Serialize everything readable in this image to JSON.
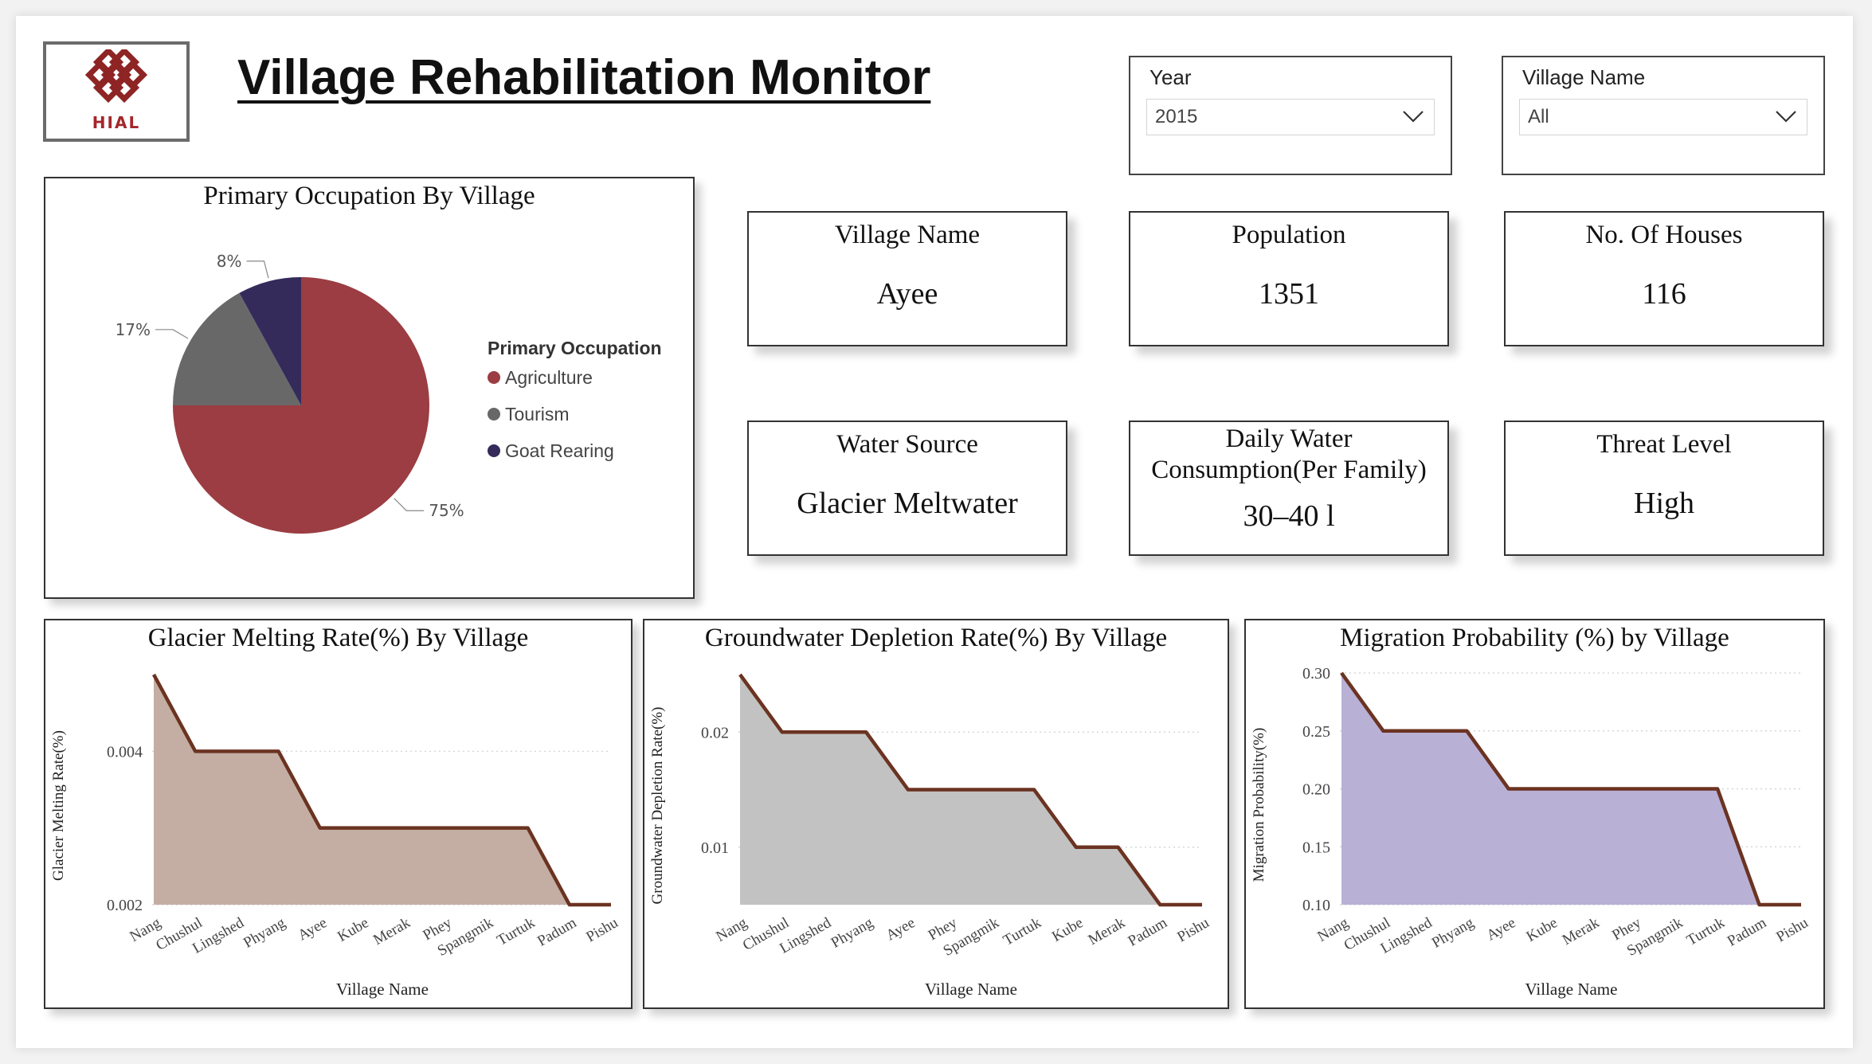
{
  "header": {
    "title": "Village Rehabilitation Monitor",
    "logo_text": "HIAL"
  },
  "filters": {
    "year": {
      "label": "Year",
      "value": "2015"
    },
    "village": {
      "label": "Village Name",
      "value": "All"
    }
  },
  "cards": {
    "village_name": {
      "label": "Village Name",
      "value": "Ayee"
    },
    "population": {
      "label": "Population",
      "value": "1351"
    },
    "houses": {
      "label": "No. Of Houses",
      "value": "116"
    },
    "water_source": {
      "label": "Water Source",
      "value": "Glacier Meltwater"
    },
    "daily_water": {
      "label_line1": "Daily Water",
      "label_line2": "Consumption(Per Family)",
      "value": "30–40 l"
    },
    "threat": {
      "label": "Threat Level",
      "value": "High"
    }
  },
  "colors": {
    "agriculture": "#9b3d42",
    "tourism": "#686868",
    "goat_rearing": "#342b5b",
    "line": "#6b3321",
    "area_glacier": "#c4aea4",
    "area_groundwater": "#c2c2c2",
    "area_migration": "#b9b0d6"
  },
  "chart_data": [
    {
      "type": "pie",
      "title": "Primary Occupation By Village",
      "legend_title": "Primary Occupation",
      "legend_position": "right",
      "labels": [
        "Agriculture",
        "Tourism",
        "Goat Rearing"
      ],
      "values": [
        75,
        17,
        8
      ],
      "data_labels": [
        "75%",
        "17%",
        "8%"
      ]
    },
    {
      "type": "area",
      "title": "Glacier Melting Rate(%) By Village",
      "xlabel": "Village Name",
      "ylabel": "Glacier Melting Rate(%)",
      "categories": [
        "Nang",
        "Chushul",
        "Lingshed",
        "Phyang",
        "Ayee",
        "Kube",
        "Merak",
        "Phey",
        "Spangmik",
        "Turtuk",
        "Padum",
        "Pishu"
      ],
      "values": [
        0.005,
        0.004,
        0.004,
        0.004,
        0.003,
        0.003,
        0.003,
        0.003,
        0.003,
        0.003,
        0.002,
        0.002
      ],
      "ylim": [
        0.002,
        0.005
      ],
      "yticks": [
        0.002,
        0.004
      ],
      "ytick_labels": [
        "0.002",
        "0.004"
      ],
      "grid": true
    },
    {
      "type": "area",
      "title": "Groundwater Depletion Rate(%) By Village",
      "xlabel": "Village Name",
      "ylabel": "Groundwater Depletion Rate(%)",
      "categories": [
        "Nang",
        "Chushul",
        "Lingshed",
        "Phyang",
        "Ayee",
        "Phey",
        "Spangmik",
        "Turtuk",
        "Kube",
        "Merak",
        "Padum",
        "Pishu"
      ],
      "values": [
        0.025,
        0.02,
        0.02,
        0.02,
        0.015,
        0.015,
        0.015,
        0.015,
        0.01,
        0.01,
        0.005,
        0.005
      ],
      "ylim": [
        0.005,
        0.025
      ],
      "yticks": [
        0.01,
        0.02
      ],
      "ytick_labels": [
        "0.01",
        "0.02"
      ],
      "grid": true
    },
    {
      "type": "area",
      "title": "Migration Probability (%) by Village",
      "xlabel": "Village Name",
      "ylabel": "Migration Probability(%)",
      "categories": [
        "Nang",
        "Chushul",
        "Lingshed",
        "Phyang",
        "Ayee",
        "Kube",
        "Merak",
        "Phey",
        "Spangmik",
        "Turtuk",
        "Padum",
        "Pishu"
      ],
      "values": [
        0.3,
        0.25,
        0.25,
        0.25,
        0.2,
        0.2,
        0.2,
        0.2,
        0.2,
        0.2,
        0.1,
        0.1
      ],
      "ylim": [
        0.1,
        0.3
      ],
      "yticks": [
        0.1,
        0.15,
        0.2,
        0.25,
        0.3
      ],
      "ytick_labels": [
        "0.10",
        "0.15",
        "0.20",
        "0.25",
        "0.30"
      ],
      "grid": true
    }
  ]
}
